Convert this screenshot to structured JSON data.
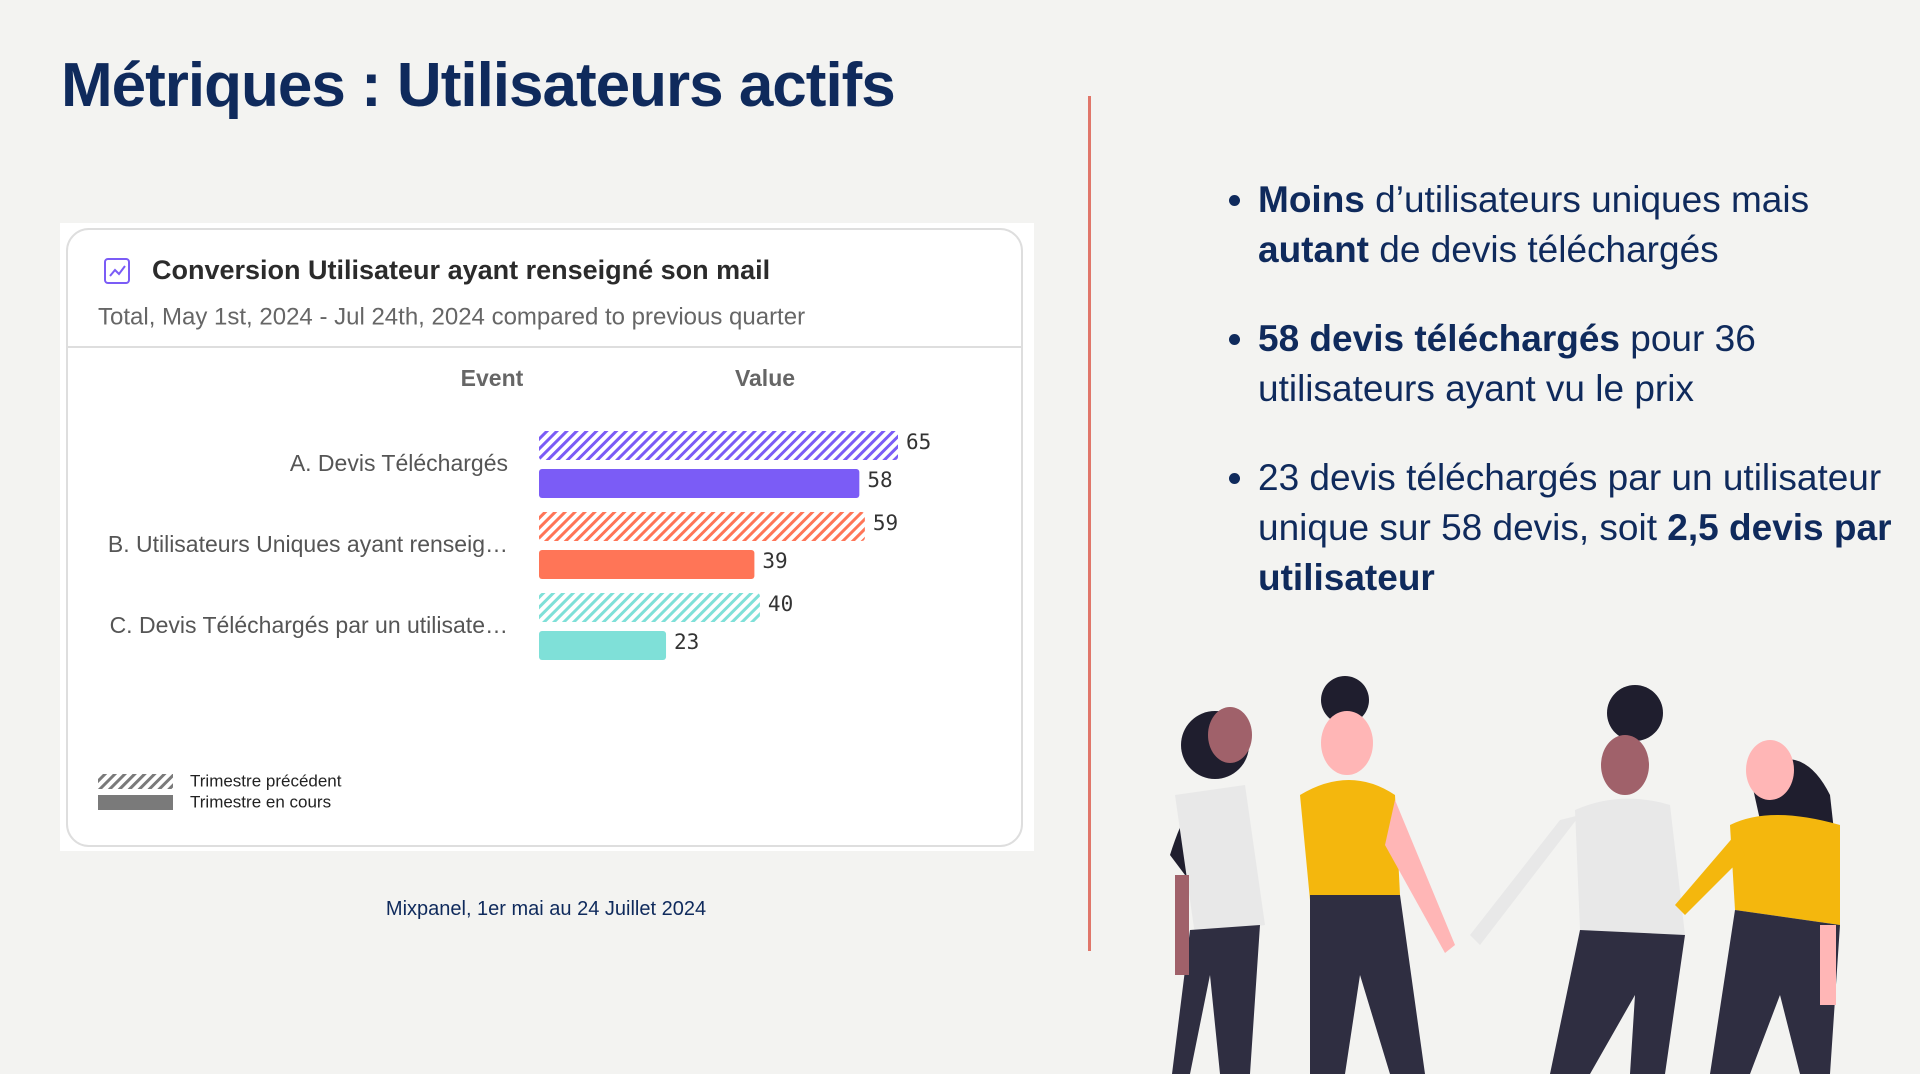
{
  "title": "Métriques : Utilisateurs actifs",
  "chart_data": {
    "type": "bar",
    "orientation": "horizontal",
    "title": "Conversion Utilisateur ayant renseigné son mail",
    "subtitle": "Total, May 1st, 2024 - Jul 24th, 2024 compared to previous quarter",
    "column_headers": [
      "Event",
      "Value"
    ],
    "categories": [
      "A. Devis Téléchargés",
      "B. Utilisateurs Uniques ayant renseig…",
      "C. Devis Téléchargés par un utilisate…"
    ],
    "colors": [
      "#7b5cf6",
      "#ff7557",
      "#7fe0d8"
    ],
    "legend_color": "#7a7a7a",
    "series": [
      {
        "name": "Trimestre précédent",
        "pattern": "hatched",
        "values": [
          65,
          59,
          40
        ]
      },
      {
        "name": "Trimestre en cours",
        "pattern": "solid",
        "values": [
          58,
          39,
          23
        ]
      }
    ]
  },
  "caption": "Mixpanel, 1er mai au 24 Juillet 2024",
  "bullets": [
    [
      {
        "text": "Moins",
        "bold": true
      },
      {
        "text": " d’utilisateurs uniques mais "
      },
      {
        "text": "autant",
        "bold": true
      },
      {
        "text": " de devis téléchargés"
      }
    ],
    [
      {
        "text": "58 devis téléchargés",
        "bold": true
      },
      {
        "text": " pour 36 utilisateurs ayant vu le prix"
      }
    ],
    [
      {
        "text": "23 devis téléchargés par un utilisateur unique sur 58 devis, soit "
      },
      {
        "text": "2,5 devis par utilisateur",
        "bold": true
      }
    ]
  ]
}
